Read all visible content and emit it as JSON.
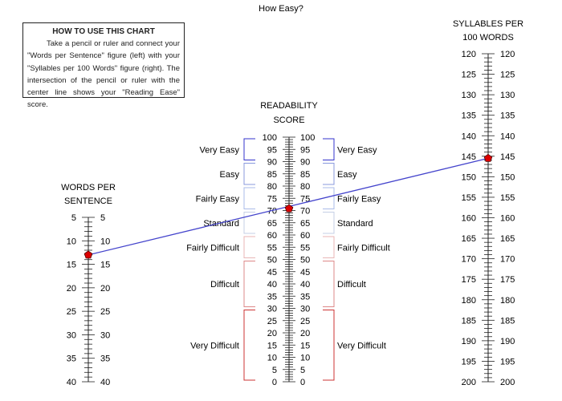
{
  "title": "How Easy?",
  "instructions": {
    "heading": "HOW TO USE THIS CHART",
    "body": "Take a pencil or ruler and connect your \"Words per Sentence\" figure (left) with your \"Syllables per 100 Words\" figure (right). The intersection of the pencil or ruler with the center line shows your \"Reading Ease\" score."
  },
  "chart_data": {
    "type": "nomogram",
    "axes": [
      {
        "key": "words",
        "title_lines": [
          "WORDS PER",
          "SENTENCE"
        ],
        "min": 5,
        "max": 40,
        "labels": [
          5,
          10,
          15,
          20,
          25,
          30,
          35,
          40
        ]
      },
      {
        "key": "score",
        "title_lines": [
          "READABILITY",
          "SCORE"
        ],
        "min": 0,
        "max": 100,
        "reversed": true,
        "labels": [
          0,
          5,
          10,
          15,
          20,
          25,
          30,
          35,
          40,
          45,
          50,
          55,
          60,
          65,
          70,
          75,
          80,
          85,
          90,
          95,
          100
        ]
      },
      {
        "key": "syllables",
        "title_lines": [
          "SYLLABLES PER",
          "100 WORDS"
        ],
        "min": 120,
        "max": 200,
        "labels": [
          120,
          125,
          130,
          135,
          140,
          145,
          150,
          155,
          160,
          165,
          170,
          175,
          180,
          185,
          190,
          195,
          200
        ]
      }
    ],
    "bands": [
      {
        "label": "Very Easy",
        "from": 90,
        "to": 100,
        "color": "#3333cc"
      },
      {
        "label": "Easy",
        "from": 80,
        "to": 90,
        "color": "#8899dd"
      },
      {
        "label": "Fairly Easy",
        "from": 70,
        "to": 80,
        "color": "#aabbe8"
      },
      {
        "label": "Standard",
        "from": 60,
        "to": 70,
        "color": "#c4cfe6"
      },
      {
        "label": "Fairly Difficult",
        "from": 50,
        "to": 60,
        "color": "#e8b6b6"
      },
      {
        "label": "Difficult",
        "from": 30,
        "to": 50,
        "color": "#dd8888"
      },
      {
        "label": "Very Difficult",
        "from": 0,
        "to": 30,
        "color": "#cc3333"
      }
    ],
    "example": {
      "words_per_sentence": 13,
      "syllables_per_100_words": 145.5,
      "reading_ease": 70.8
    },
    "line_color": "#4444cc",
    "marker_color": "#dd0000"
  }
}
